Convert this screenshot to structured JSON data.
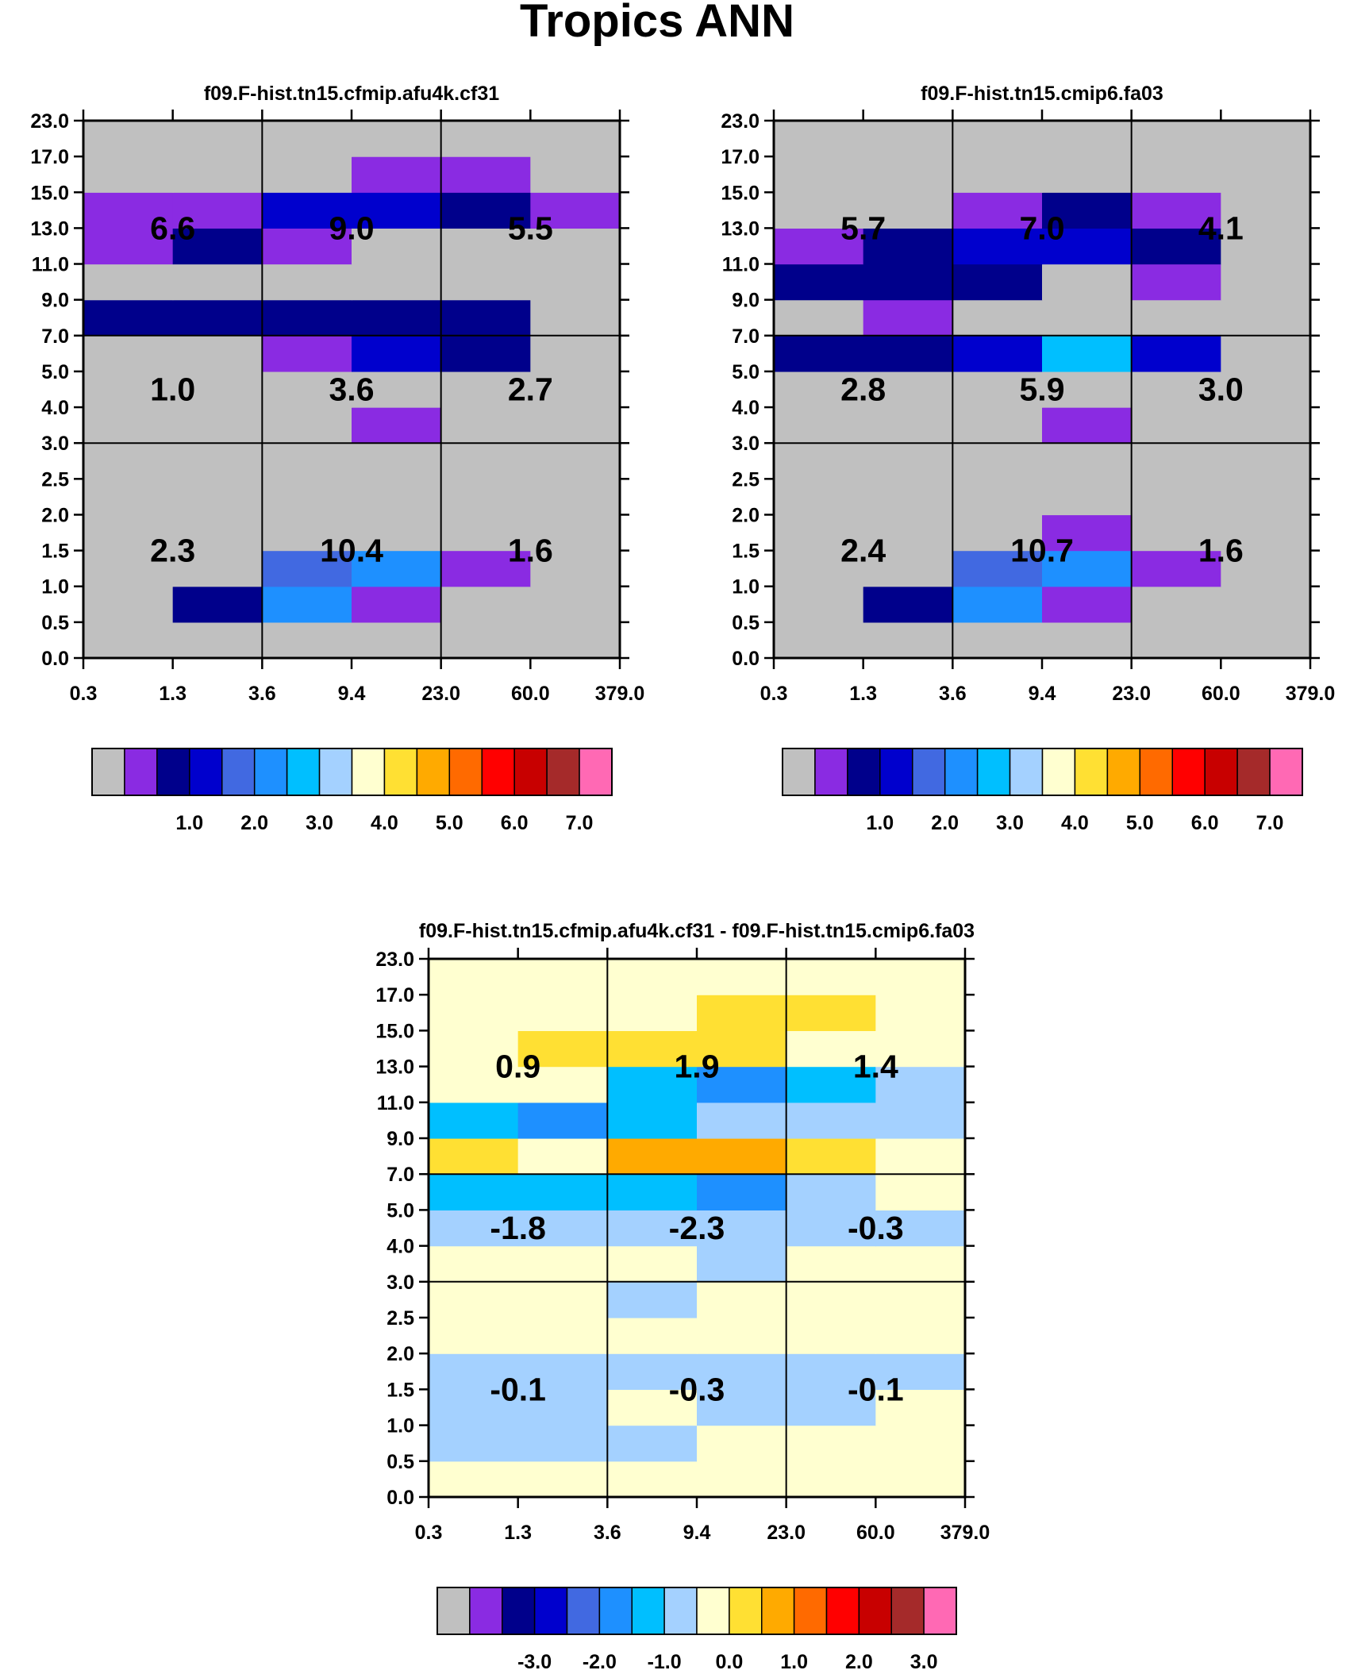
{
  "title": "Tropics ANN",
  "colors": {
    "default_palette": [
      "#c0c0c0",
      "#8a2be2",
      "#00008b",
      "#0000cd",
      "#4169e1",
      "#1e90ff",
      "#00bfff",
      "#a4d1ff",
      "#ffffd0",
      "#ffe033",
      "#ffaa00",
      "#ff6a00",
      "#ff0000",
      "#c80000",
      "#a52a2a",
      "#ff69b4"
    ],
    "grid_line": "#000000",
    "missing": "#c0c0c0"
  },
  "chart_data": [
    {
      "type": "heatmap",
      "title": "f09.F-hist.tn15.cfmip.afu4k.cf31",
      "x_ticks": [
        "0.3",
        "1.3",
        "3.6",
        "9.4",
        "23.0",
        "60.0",
        "379.0"
      ],
      "y_ticks": [
        "0.0",
        "0.5",
        "1.0",
        "1.5",
        "2.0",
        "2.5",
        "3.0",
        "4.0",
        "5.0",
        "7.0",
        "9.0",
        "11.0",
        "13.0",
        "15.0",
        "17.0",
        "23.0"
      ],
      "color_levels": [
        -99,
        0,
        1,
        2,
        3,
        4,
        5,
        6,
        7
      ],
      "cell_colors": [
        [
          0,
          0,
          0,
          0,
          0,
          0
        ],
        [
          0,
          2,
          5,
          1,
          0,
          0
        ],
        [
          0,
          0,
          4,
          5,
          1,
          0
        ],
        [
          0,
          0,
          0,
          0,
          0,
          0
        ],
        [
          0,
          0,
          0,
          0,
          0,
          0
        ],
        [
          0,
          0,
          0,
          0,
          0,
          0
        ],
        [
          0,
          0,
          0,
          1,
          0,
          0
        ],
        [
          0,
          0,
          0,
          0,
          0,
          0
        ],
        [
          0,
          0,
          1,
          3,
          2,
          0
        ],
        [
          2,
          2,
          2,
          2,
          2,
          0
        ],
        [
          0,
          0,
          0,
          0,
          0,
          0
        ],
        [
          1,
          2,
          1,
          0,
          0,
          0
        ],
        [
          1,
          1,
          3,
          3,
          2,
          1
        ],
        [
          0,
          0,
          0,
          1,
          1,
          0
        ],
        [
          0,
          0,
          0,
          0,
          0,
          0
        ]
      ],
      "box_totals": [
        {
          "col": 0,
          "row": 0,
          "label": "2.3"
        },
        {
          "col": 1,
          "row": 0,
          "label": "10.4"
        },
        {
          "col": 2,
          "row": 0,
          "label": "1.6"
        },
        {
          "col": 0,
          "row": 1,
          "label": "1.0"
        },
        {
          "col": 1,
          "row": 1,
          "label": "3.6"
        },
        {
          "col": 2,
          "row": 1,
          "label": "2.7"
        },
        {
          "col": 0,
          "row": 2,
          "label": "6.6"
        },
        {
          "col": 1,
          "row": 2,
          "label": "9.0"
        },
        {
          "col": 2,
          "row": 2,
          "label": "5.5"
        }
      ],
      "colorbar_labels": [
        "1.0",
        "2.0",
        "3.0",
        "4.0",
        "5.0",
        "6.0",
        "7.0"
      ]
    },
    {
      "type": "heatmap",
      "title": "f09.F-hist.tn15.cmip6.fa03",
      "x_ticks": [
        "0.3",
        "1.3",
        "3.6",
        "9.4",
        "23.0",
        "60.0",
        "379.0"
      ],
      "y_ticks": [
        "0.0",
        "0.5",
        "1.0",
        "1.5",
        "2.0",
        "2.5",
        "3.0",
        "4.0",
        "5.0",
        "7.0",
        "9.0",
        "11.0",
        "13.0",
        "15.0",
        "17.0",
        "23.0"
      ],
      "color_levels": [
        -99,
        0,
        1,
        2,
        3,
        4,
        5,
        6,
        7
      ],
      "cell_colors": [
        [
          0,
          0,
          0,
          0,
          0,
          0
        ],
        [
          0,
          2,
          5,
          1,
          0,
          0
        ],
        [
          0,
          0,
          4,
          5,
          1,
          0
        ],
        [
          0,
          0,
          0,
          1,
          0,
          0
        ],
        [
          0,
          0,
          0,
          0,
          0,
          0
        ],
        [
          0,
          0,
          0,
          0,
          0,
          0
        ],
        [
          0,
          0,
          0,
          1,
          0,
          0
        ],
        [
          0,
          0,
          0,
          0,
          0,
          0
        ],
        [
          2,
          2,
          3,
          6,
          3,
          0
        ],
        [
          0,
          1,
          0,
          0,
          0,
          0
        ],
        [
          2,
          2,
          2,
          0,
          1,
          0
        ],
        [
          1,
          2,
          3,
          3,
          2,
          0
        ],
        [
          0,
          0,
          1,
          2,
          1,
          0
        ],
        [
          0,
          0,
          0,
          0,
          0,
          0
        ],
        [
          0,
          0,
          0,
          0,
          0,
          0
        ]
      ],
      "box_totals": [
        {
          "col": 0,
          "row": 0,
          "label": "2.4"
        },
        {
          "col": 1,
          "row": 0,
          "label": "10.7"
        },
        {
          "col": 2,
          "row": 0,
          "label": "1.6"
        },
        {
          "col": 0,
          "row": 1,
          "label": "2.8"
        },
        {
          "col": 1,
          "row": 1,
          "label": "5.9"
        },
        {
          "col": 2,
          "row": 1,
          "label": "3.0"
        },
        {
          "col": 0,
          "row": 2,
          "label": "5.7"
        },
        {
          "col": 1,
          "row": 2,
          "label": "7.0"
        },
        {
          "col": 2,
          "row": 2,
          "label": "4.1"
        }
      ],
      "colorbar_labels": [
        "1.0",
        "2.0",
        "3.0",
        "4.0",
        "5.0",
        "6.0",
        "7.0"
      ]
    },
    {
      "type": "heatmap",
      "title": "f09.F-hist.tn15.cfmip.afu4k.cf31 - f09.F-hist.tn15.cmip6.fa03",
      "x_ticks": [
        "0.3",
        "1.3",
        "3.6",
        "9.4",
        "23.0",
        "60.0",
        "379.0"
      ],
      "y_ticks": [
        "0.0",
        "0.5",
        "1.0",
        "1.5",
        "2.0",
        "2.5",
        "3.0",
        "4.0",
        "5.0",
        "7.0",
        "9.0",
        "11.0",
        "13.0",
        "15.0",
        "17.0",
        "23.0"
      ],
      "color_levels": [
        -99,
        -3.5,
        -3,
        -2.5,
        -2,
        -1.5,
        -1,
        -0.5,
        0,
        0.5,
        1,
        1.5,
        2,
        2.5,
        3,
        3.5
      ],
      "cell_colors": [
        [
          8,
          8,
          8,
          8,
          8,
          8
        ],
        [
          7,
          7,
          7,
          8,
          8,
          8
        ],
        [
          7,
          7,
          8,
          7,
          7,
          8
        ],
        [
          7,
          7,
          7,
          7,
          7,
          7
        ],
        [
          8,
          8,
          8,
          8,
          8,
          8
        ],
        [
          8,
          8,
          7,
          8,
          8,
          8
        ],
        [
          8,
          8,
          8,
          7,
          8,
          8
        ],
        [
          7,
          7,
          7,
          7,
          7,
          7
        ],
        [
          6,
          6,
          6,
          5,
          7,
          8
        ],
        [
          9,
          8,
          10,
          10,
          9,
          8
        ],
        [
          6,
          5,
          6,
          7,
          7,
          7
        ],
        [
          8,
          8,
          6,
          5,
          6,
          7
        ],
        [
          8,
          9,
          9,
          9,
          8,
          8
        ],
        [
          8,
          8,
          8,
          9,
          9,
          8
        ],
        [
          8,
          8,
          8,
          8,
          8,
          8
        ]
      ],
      "box_totals": [
        {
          "col": 0,
          "row": 0,
          "label": "-0.1"
        },
        {
          "col": 1,
          "row": 0,
          "label": "-0.3"
        },
        {
          "col": 2,
          "row": 0,
          "label": "-0.1"
        },
        {
          "col": 0,
          "row": 1,
          "label": "-1.8"
        },
        {
          "col": 1,
          "row": 1,
          "label": "-2.3"
        },
        {
          "col": 2,
          "row": 1,
          "label": "-0.3"
        },
        {
          "col": 0,
          "row": 2,
          "label": "0.9"
        },
        {
          "col": 1,
          "row": 2,
          "label": "1.9"
        },
        {
          "col": 2,
          "row": 2,
          "label": "1.4"
        }
      ],
      "colorbar_labels": [
        "-3.0",
        "-2.0",
        "-1.0",
        "0.0",
        "1.0",
        "2.0",
        "3.0"
      ]
    }
  ]
}
